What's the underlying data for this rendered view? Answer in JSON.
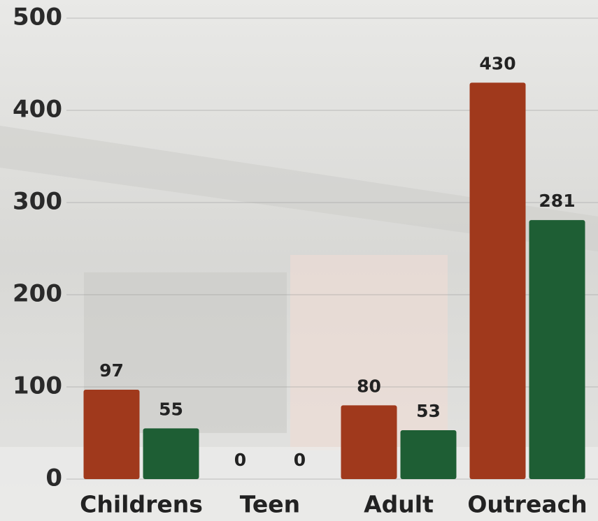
{
  "chart_data": {
    "type": "bar",
    "categories": [
      "Childrens",
      "Teen",
      "Adult",
      "Outreach"
    ],
    "series": [
      {
        "color": "#a0391c",
        "values": [
          97,
          0,
          80,
          430
        ]
      },
      {
        "color": "#1e5e34",
        "values": [
          55,
          0,
          53,
          281
        ]
      }
    ],
    "ylim": [
      0,
      500
    ],
    "yticks": [
      0,
      100,
      200,
      300,
      400,
      500
    ],
    "grid": true
  }
}
